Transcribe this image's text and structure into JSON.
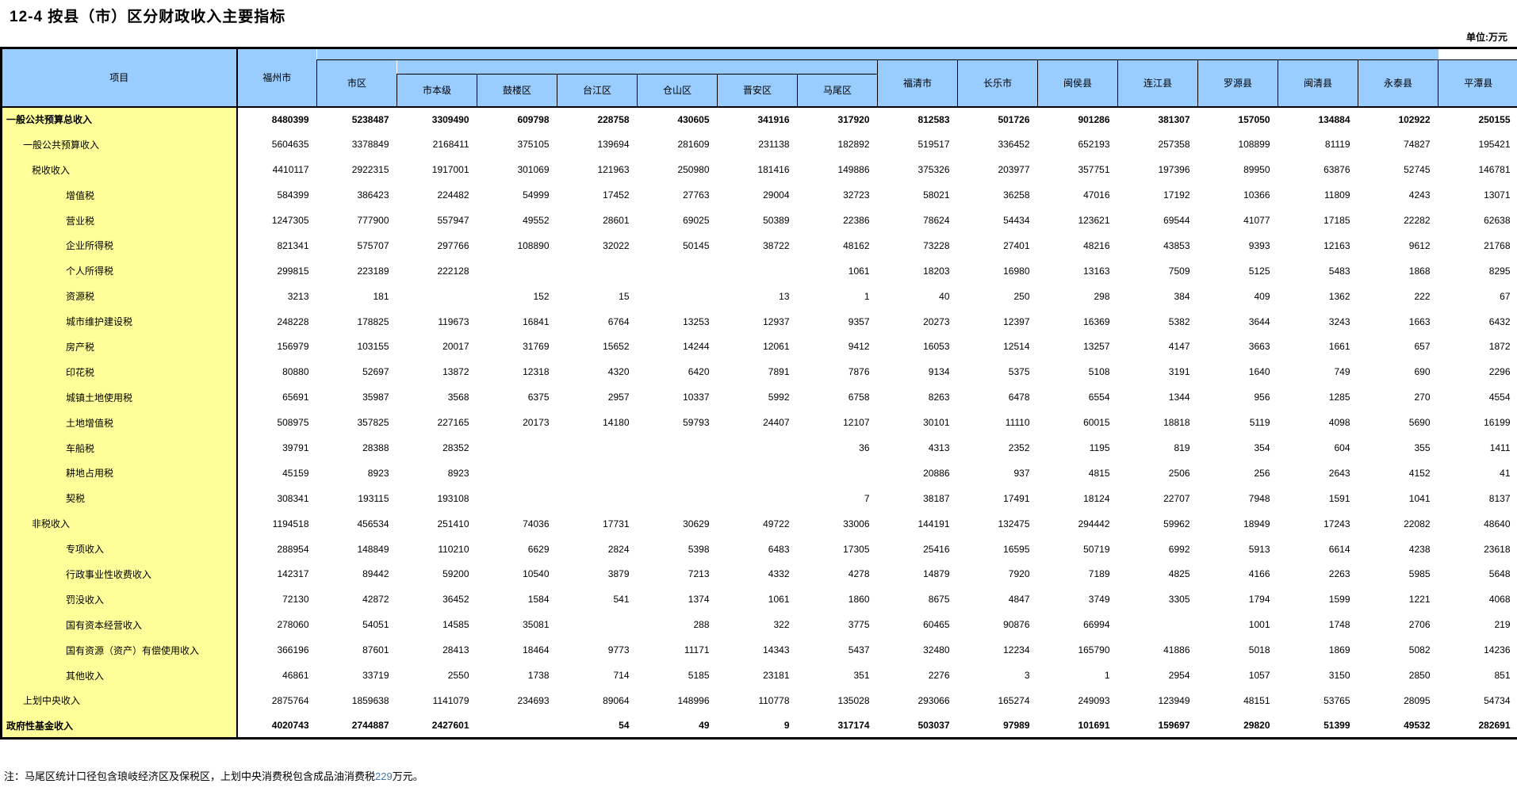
{
  "title": "12-4 按县（市）区分财政收入主要指标",
  "unit_note": "单位:万元",
  "colors": {
    "header_bg": "#99CCFF",
    "label_bg": "#FFFF99",
    "border": "#000000",
    "note_highlight": "#4477AA"
  },
  "table": {
    "item_header": "项目",
    "city_header": "福州市",
    "urban_group_header": "市区",
    "urban_sub_headers": [
      "市本级",
      "鼓楼区",
      "台江区",
      "仓山区",
      "晋安区",
      "马尾区"
    ],
    "county_headers": [
      "福清市",
      "长乐市",
      "闽侯县",
      "连江县",
      "罗源县",
      "闽清县",
      "永泰县",
      "平潭县"
    ],
    "rows": [
      {
        "label": "一般公共预算总收入",
        "indent": 0,
        "bold": true,
        "values": [
          "8480399",
          "5238487",
          "3309490",
          "609798",
          "228758",
          "430605",
          "341916",
          "317920",
          "812583",
          "501726",
          "901286",
          "381307",
          "157050",
          "134884",
          "102922",
          "250155"
        ]
      },
      {
        "label": "一般公共预算收入",
        "indent": 1,
        "bold": false,
        "values": [
          "5604635",
          "3378849",
          "2168411",
          "375105",
          "139694",
          "281609",
          "231138",
          "182892",
          "519517",
          "336452",
          "652193",
          "257358",
          "108899",
          "81119",
          "74827",
          "195421"
        ]
      },
      {
        "label": "税收收入",
        "indent": 2,
        "bold": false,
        "values": [
          "4410117",
          "2922315",
          "1917001",
          "301069",
          "121963",
          "250980",
          "181416",
          "149886",
          "375326",
          "203977",
          "357751",
          "197396",
          "89950",
          "63876",
          "52745",
          "146781"
        ]
      },
      {
        "label": "增值税",
        "indent": 3,
        "bold": false,
        "values": [
          "584399",
          "386423",
          "224482",
          "54999",
          "17452",
          "27763",
          "29004",
          "32723",
          "58021",
          "36258",
          "47016",
          "17192",
          "10366",
          "11809",
          "4243",
          "13071"
        ]
      },
      {
        "label": "营业税",
        "indent": 3,
        "bold": false,
        "values": [
          "1247305",
          "777900",
          "557947",
          "49552",
          "28601",
          "69025",
          "50389",
          "22386",
          "78624",
          "54434",
          "123621",
          "69544",
          "41077",
          "17185",
          "22282",
          "62638"
        ]
      },
      {
        "label": "企业所得税",
        "indent": 3,
        "bold": false,
        "values": [
          "821341",
          "575707",
          "297766",
          "108890",
          "32022",
          "50145",
          "38722",
          "48162",
          "73228",
          "27401",
          "48216",
          "43853",
          "9393",
          "12163",
          "9612",
          "21768"
        ]
      },
      {
        "label": "个人所得税",
        "indent": 3,
        "bold": false,
        "values": [
          "299815",
          "223189",
          "222128",
          "",
          "",
          "",
          "",
          "1061",
          "18203",
          "16980",
          "13163",
          "7509",
          "5125",
          "5483",
          "1868",
          "8295"
        ]
      },
      {
        "label": "资源税",
        "indent": 3,
        "bold": false,
        "values": [
          "3213",
          "181",
          "",
          "152",
          "15",
          "",
          "13",
          "1",
          "40",
          "250",
          "298",
          "384",
          "409",
          "1362",
          "222",
          "67"
        ]
      },
      {
        "label": "城市维护建设税",
        "indent": 3,
        "bold": false,
        "values": [
          "248228",
          "178825",
          "119673",
          "16841",
          "6764",
          "13253",
          "12937",
          "9357",
          "20273",
          "12397",
          "16369",
          "5382",
          "3644",
          "3243",
          "1663",
          "6432"
        ]
      },
      {
        "label": "房产税",
        "indent": 3,
        "bold": false,
        "values": [
          "156979",
          "103155",
          "20017",
          "31769",
          "15652",
          "14244",
          "12061",
          "9412",
          "16053",
          "12514",
          "13257",
          "4147",
          "3663",
          "1661",
          "657",
          "1872"
        ]
      },
      {
        "label": "印花税",
        "indent": 3,
        "bold": false,
        "values": [
          "80880",
          "52697",
          "13872",
          "12318",
          "4320",
          "6420",
          "7891",
          "7876",
          "9134",
          "5375",
          "5108",
          "3191",
          "1640",
          "749",
          "690",
          "2296"
        ]
      },
      {
        "label": "城镇土地使用税",
        "indent": 3,
        "bold": false,
        "values": [
          "65691",
          "35987",
          "3568",
          "6375",
          "2957",
          "10337",
          "5992",
          "6758",
          "8263",
          "6478",
          "6554",
          "1344",
          "956",
          "1285",
          "270",
          "4554"
        ]
      },
      {
        "label": "土地增值税",
        "indent": 3,
        "bold": false,
        "values": [
          "508975",
          "357825",
          "227165",
          "20173",
          "14180",
          "59793",
          "24407",
          "12107",
          "30101",
          "11110",
          "60015",
          "18818",
          "5119",
          "4098",
          "5690",
          "16199"
        ]
      },
      {
        "label": "车船税",
        "indent": 3,
        "bold": false,
        "values": [
          "39791",
          "28388",
          "28352",
          "",
          "",
          "",
          "",
          "36",
          "4313",
          "2352",
          "1195",
          "819",
          "354",
          "604",
          "355",
          "1411"
        ]
      },
      {
        "label": "耕地占用税",
        "indent": 3,
        "bold": false,
        "values": [
          "45159",
          "8923",
          "8923",
          "",
          "",
          "",
          "",
          "",
          "20886",
          "937",
          "4815",
          "2506",
          "256",
          "2643",
          "4152",
          "41"
        ]
      },
      {
        "label": "契税",
        "indent": 3,
        "bold": false,
        "values": [
          "308341",
          "193115",
          "193108",
          "",
          "",
          "",
          "",
          "7",
          "38187",
          "17491",
          "18124",
          "22707",
          "7948",
          "1591",
          "1041",
          "8137"
        ]
      },
      {
        "label": "非税收入",
        "indent": 2,
        "bold": false,
        "values": [
          "1194518",
          "456534",
          "251410",
          "74036",
          "17731",
          "30629",
          "49722",
          "33006",
          "144191",
          "132475",
          "294442",
          "59962",
          "18949",
          "17243",
          "22082",
          "48640"
        ]
      },
      {
        "label": "专项收入",
        "indent": 3,
        "bold": false,
        "values": [
          "288954",
          "148849",
          "110210",
          "6629",
          "2824",
          "5398",
          "6483",
          "17305",
          "25416",
          "16595",
          "50719",
          "6992",
          "5913",
          "6614",
          "4238",
          "23618"
        ]
      },
      {
        "label": "行政事业性收费收入",
        "indent": 3,
        "bold": false,
        "values": [
          "142317",
          "89442",
          "59200",
          "10540",
          "3879",
          "7213",
          "4332",
          "4278",
          "14879",
          "7920",
          "7189",
          "4825",
          "4166",
          "2263",
          "5985",
          "5648"
        ]
      },
      {
        "label": "罚没收入",
        "indent": 3,
        "bold": false,
        "values": [
          "72130",
          "42872",
          "36452",
          "1584",
          "541",
          "1374",
          "1061",
          "1860",
          "8675",
          "4847",
          "3749",
          "3305",
          "1794",
          "1599",
          "1221",
          "4068"
        ]
      },
      {
        "label": "国有资本经营收入",
        "indent": 3,
        "bold": false,
        "values": [
          "278060",
          "54051",
          "14585",
          "35081",
          "",
          "288",
          "322",
          "3775",
          "60465",
          "90876",
          "66994",
          "",
          "1001",
          "1748",
          "2706",
          "219"
        ]
      },
      {
        "label": "国有资源（资产）有偿使用收入",
        "indent": 3,
        "bold": false,
        "values": [
          "366196",
          "87601",
          "28413",
          "18464",
          "9773",
          "11171",
          "14343",
          "5437",
          "32480",
          "12234",
          "165790",
          "41886",
          "5018",
          "1869",
          "5082",
          "14236"
        ]
      },
      {
        "label": "其他收入",
        "indent": 3,
        "bold": false,
        "values": [
          "46861",
          "33719",
          "2550",
          "1738",
          "714",
          "5185",
          "23181",
          "351",
          "2276",
          "3",
          "1",
          "2954",
          "1057",
          "3150",
          "2850",
          "851"
        ]
      },
      {
        "label": "上划中央收入",
        "indent": 1,
        "bold": false,
        "values": [
          "2875764",
          "1859638",
          "1141079",
          "234693",
          "89064",
          "148996",
          "110778",
          "135028",
          "293066",
          "165274",
          "249093",
          "123949",
          "48151",
          "53765",
          "28095",
          "54734"
        ]
      },
      {
        "label": "政府性基金收入",
        "indent": 0,
        "bold": true,
        "values": [
          "4020743",
          "2744887",
          "2427601",
          "",
          "54",
          "49",
          "9",
          "317174",
          "503037",
          "97989",
          "101691",
          "159697",
          "29820",
          "51399",
          "49532",
          "282691"
        ]
      }
    ]
  },
  "footnote": {
    "prefix": "注：马尾区统计口径包含琅岐经济区及保税区，上划中央消费税包含成品油消费税",
    "highlight": "229",
    "suffix": "万元。"
  }
}
